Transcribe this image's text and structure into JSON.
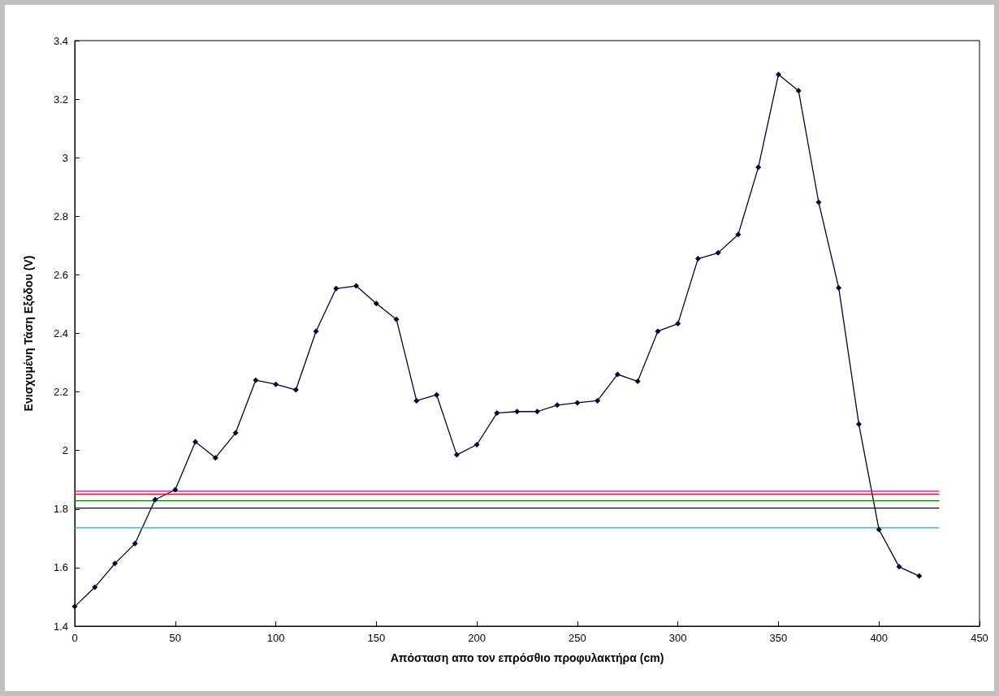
{
  "chart_data": {
    "type": "line",
    "xlabel": "Απόσταση απο τον επρόσθιο προφυλακτήρα (cm)",
    "ylabel": "Ενισχυμένη Τάση Εξόδου (V)",
    "xlim": [
      0,
      450
    ],
    "xticks": [
      0,
      50,
      100,
      150,
      200,
      250,
      300,
      350,
      400,
      450
    ],
    "ylim": [
      1.4,
      3.4
    ],
    "yticks": [
      1.4,
      1.6,
      1.8,
      2,
      2.2,
      2.4,
      2.6,
      2.8,
      3,
      3.2,
      3.4
    ],
    "grid": false,
    "line_style": "solid",
    "series": [
      {
        "color": "#000033",
        "marker": "diamond",
        "x": [
          0,
          10,
          20,
          30,
          40,
          50,
          60,
          70,
          80,
          90,
          100,
          110,
          120,
          130,
          140,
          150,
          160,
          170,
          180,
          190,
          200,
          210,
          220,
          230,
          240,
          250,
          260,
          270,
          280,
          290,
          300,
          310,
          320,
          330,
          340,
          350,
          360,
          370,
          380,
          390,
          400,
          410,
          420
        ],
        "values": [
          1.467,
          1.533,
          1.614,
          1.682,
          1.832,
          1.866,
          2.03,
          1.975,
          2.06,
          2.24,
          2.226,
          2.207,
          2.407,
          2.553,
          2.562,
          2.502,
          2.448,
          2.17,
          2.19,
          1.985,
          2.02,
          2.128,
          2.133,
          2.133,
          2.155,
          2.163,
          2.17,
          2.26,
          2.236,
          2.407,
          2.433,
          2.655,
          2.675,
          2.738,
          2.967,
          3.284,
          3.229,
          2.848,
          2.555,
          2.09,
          1.73,
          1.603,
          1.571
        ]
      },
      {
        "color": "#bf00bf",
        "marker": "none",
        "x": [
          0,
          430
        ],
        "values": [
          1.861,
          1.861
        ]
      },
      {
        "color": "#ff0000",
        "marker": "none",
        "x": [
          0,
          430
        ],
        "values": [
          1.851,
          1.851
        ]
      },
      {
        "color": "#008000",
        "marker": "none",
        "x": [
          0,
          430
        ],
        "values": [
          1.828,
          1.828
        ]
      },
      {
        "color": "#000080",
        "marker": "none",
        "x": [
          0,
          430
        ],
        "values": [
          1.803,
          1.803
        ]
      },
      {
        "color": "#00bfbf",
        "marker": "none",
        "x": [
          0,
          430
        ],
        "values": [
          1.736,
          1.736
        ]
      }
    ]
  }
}
